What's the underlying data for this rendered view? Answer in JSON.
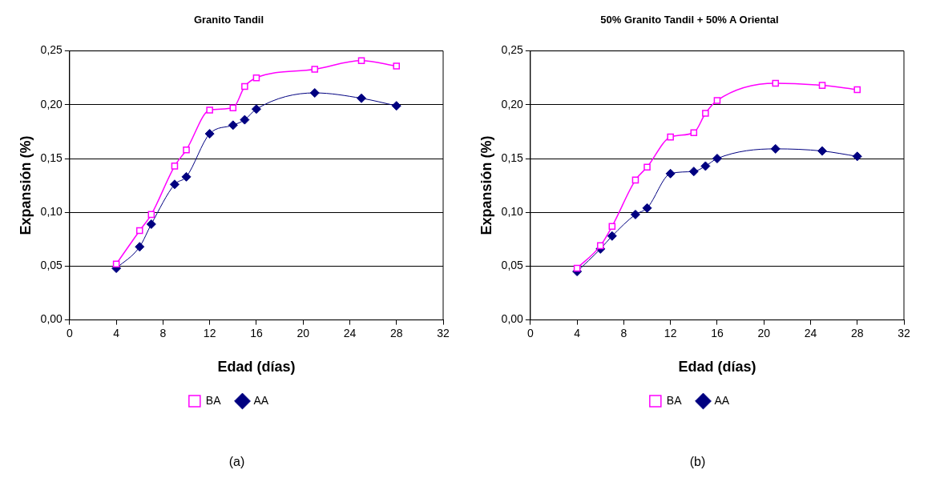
{
  "chart_data": [
    {
      "type": "line",
      "title": "Granito Tandil",
      "xlabel": "Edad (días)",
      "ylabel": "Expansión (%)",
      "x": [
        4,
        6,
        7,
        9,
        10,
        12,
        14,
        15,
        16,
        21,
        25,
        28
      ],
      "series": [
        {
          "name": "AA",
          "color": "#000080",
          "marker": "diamond",
          "values": [
            0.048,
            0.068,
            0.089,
            0.126,
            0.133,
            0.173,
            0.181,
            0.186,
            0.196,
            0.211,
            0.206,
            0.199
          ]
        },
        {
          "name": "BA",
          "color": "#ff00ff",
          "marker": "square",
          "values": [
            0.052,
            0.083,
            0.098,
            0.143,
            0.158,
            0.195,
            0.197,
            0.217,
            0.225,
            0.233,
            0.241,
            0.236
          ]
        }
      ],
      "xlim": [
        0,
        32
      ],
      "xticks": [
        0,
        4,
        8,
        12,
        16,
        20,
        24,
        28,
        32
      ],
      "ylim": [
        0,
        0.25
      ],
      "yticks": [
        {
          "value": 0,
          "label": "0,00"
        },
        {
          "value": 0.05,
          "label": "0,05"
        },
        {
          "value": 0.1,
          "label": "0,10"
        },
        {
          "value": 0.15,
          "label": "0,15"
        },
        {
          "value": 0.2,
          "label": "0,20"
        },
        {
          "value": 0.25,
          "label": "0,25"
        }
      ],
      "grid": "y",
      "legend": "bottom",
      "annotations": [
        "(a)"
      ]
    },
    {
      "type": "line",
      "title": "50% Granito Tandil + 50% A Oriental",
      "xlabel": "Edad (días)",
      "ylabel": "Expansión (%)",
      "x": [
        4,
        6,
        7,
        9,
        10,
        12,
        14,
        15,
        16,
        21,
        25,
        28
      ],
      "series": [
        {
          "name": "AA",
          "color": "#000080",
          "marker": "diamond",
          "values": [
            0.045,
            0.066,
            0.078,
            0.098,
            0.104,
            0.136,
            0.138,
            0.143,
            0.15,
            0.159,
            0.157,
            0.152
          ]
        },
        {
          "name": "BA",
          "color": "#ff00ff",
          "marker": "square",
          "values": [
            0.048,
            0.069,
            0.087,
            0.13,
            0.142,
            0.17,
            0.174,
            0.192,
            0.204,
            0.22,
            0.218,
            0.214
          ]
        }
      ],
      "xlim": [
        0,
        32
      ],
      "xticks": [
        0,
        4,
        8,
        12,
        16,
        20,
        24,
        28,
        32
      ],
      "ylim": [
        0,
        0.25
      ],
      "yticks": [
        {
          "value": 0,
          "label": "0,00"
        },
        {
          "value": 0.05,
          "label": "0,05"
        },
        {
          "value": 0.1,
          "label": "0,10"
        },
        {
          "value": 0.15,
          "label": "0,15"
        },
        {
          "value": 0.2,
          "label": "0,20"
        },
        {
          "value": 0.25,
          "label": "0,25"
        }
      ],
      "grid": "y",
      "legend": "bottom",
      "annotations": [
        "(b)"
      ]
    }
  ]
}
